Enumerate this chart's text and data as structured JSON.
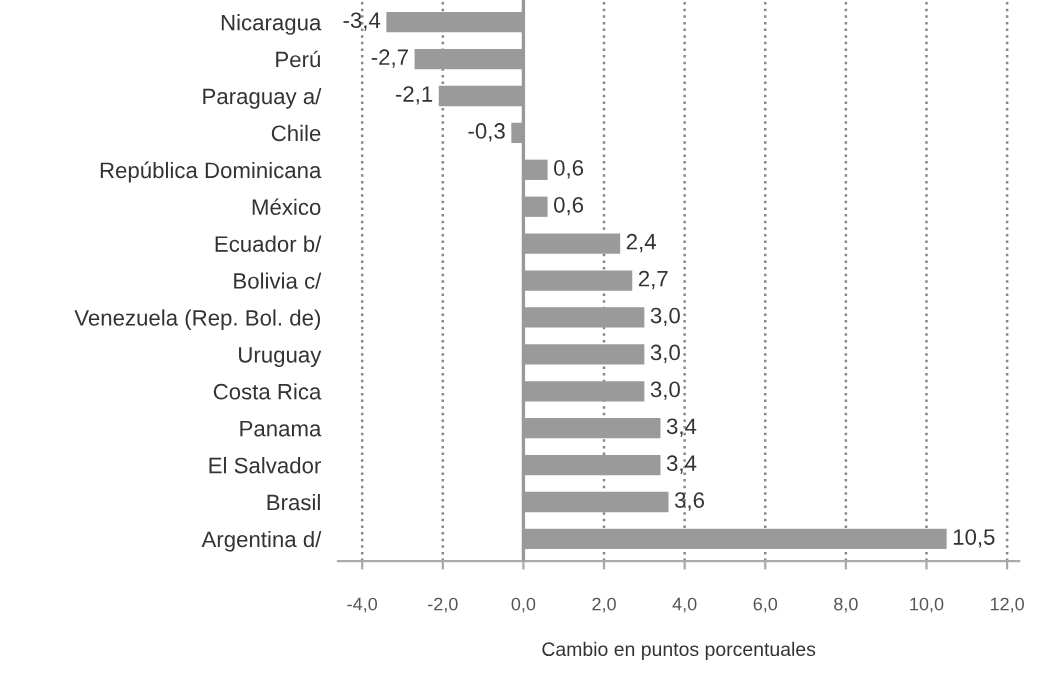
{
  "chart_data": {
    "type": "bar",
    "orientation": "horizontal",
    "xlabel": "Cambio en puntos porcentuales",
    "categories": [
      "Nicaragua",
      "Perú",
      "Paraguay a/",
      "Chile",
      "República Dominicana",
      "México",
      "Ecuador b/",
      "Bolivia c/",
      "Venezuela (Rep. Bol. de)",
      "Uruguay",
      "Costa Rica",
      "Panama",
      "El Salvador",
      "Brasil",
      "Argentina d/"
    ],
    "values": [
      -3.4,
      -2.7,
      -2.1,
      -0.3,
      0.6,
      0.6,
      2.4,
      2.7,
      3.0,
      3.0,
      3.0,
      3.4,
      3.4,
      3.6,
      10.5
    ],
    "value_labels": [
      "-3,4",
      "-2,7",
      "-2,1",
      "-0,3",
      "0,6",
      "0,6",
      "2,4",
      "2,7",
      "3,0",
      "3,0",
      "3,0",
      "3,4",
      "3,4",
      "3,6",
      "10,5"
    ],
    "color": "#9a9a9a",
    "xlim": [
      -4.6,
      12.3
    ],
    "xticks": [
      {
        "value": -4,
        "label": "-4,0"
      },
      {
        "value": -2,
        "label": "-2,0"
      },
      {
        "value": 0,
        "label": "0,0"
      },
      {
        "value": 2,
        "label": "2,0"
      },
      {
        "value": 4,
        "label": "4,0"
      },
      {
        "value": 6,
        "label": "6,0"
      },
      {
        "value": 8,
        "label": "8,0"
      },
      {
        "value": 10,
        "label": "10,0"
      },
      {
        "value": 12,
        "label": "12,0"
      }
    ],
    "grid": "x"
  }
}
